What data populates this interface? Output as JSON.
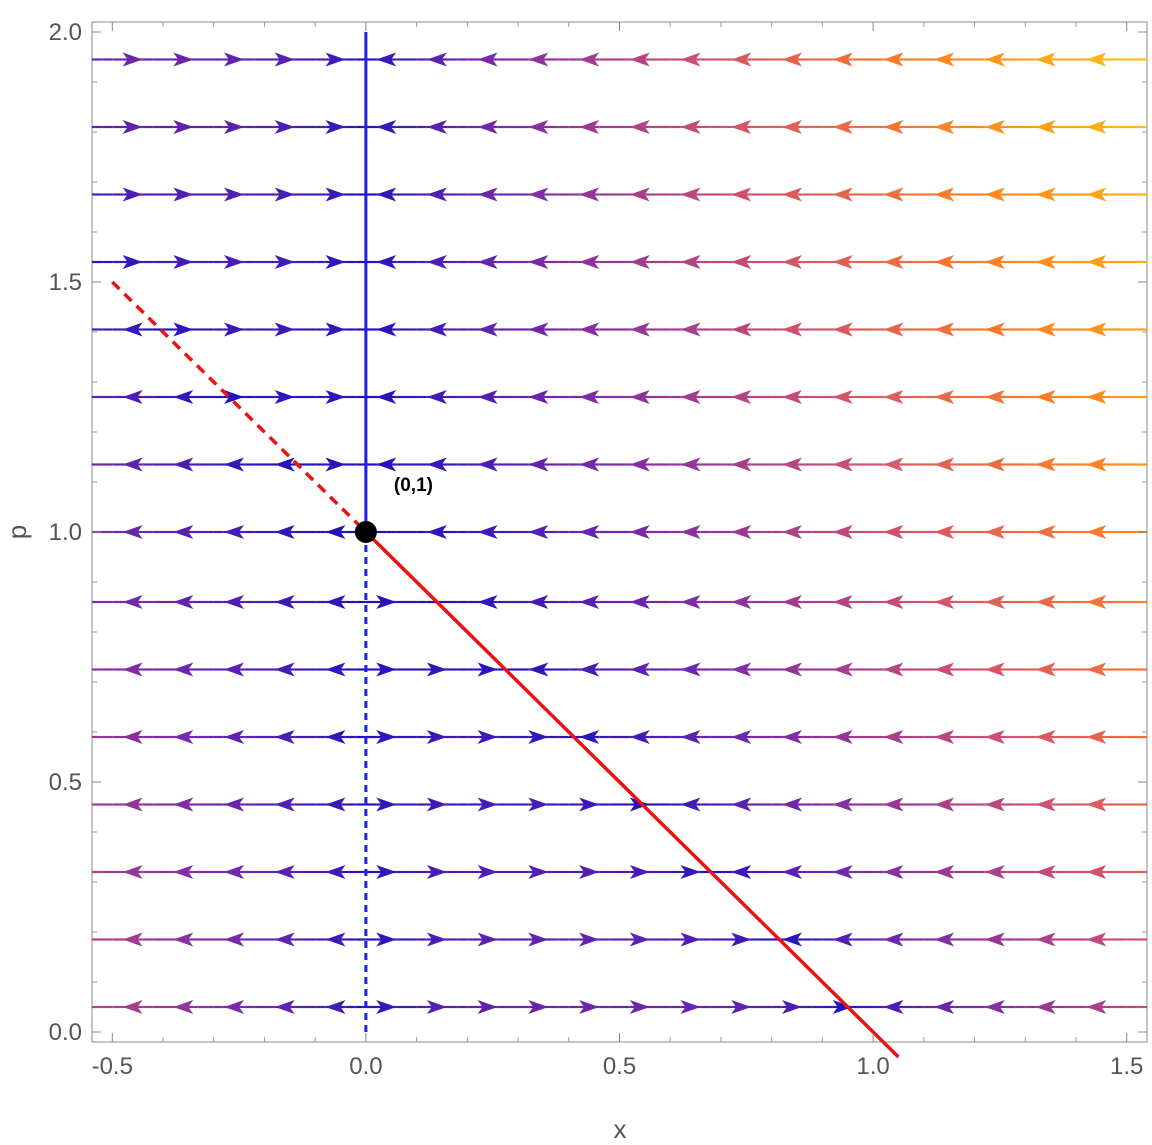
{
  "chart_data": {
    "type": "stream plot",
    "xlabel": "x",
    "ylabel": "p",
    "xlim": [
      -0.54,
      1.54
    ],
    "ylim": [
      -0.02,
      2.02
    ],
    "x_ticks": [
      -0.5,
      0.0,
      0.5,
      1.0,
      1.5
    ],
    "x_tick_labels": [
      "-0.5",
      "0.0",
      "0.5",
      "1.0",
      "1.5"
    ],
    "y_ticks": [
      0.0,
      0.5,
      1.0,
      1.5,
      2.0
    ],
    "y_tick_labels": [
      "0.0",
      "0.5",
      "1.0",
      "1.5",
      "2.0"
    ],
    "streamline_p": [
      0.05,
      0.185,
      0.32,
      0.455,
      0.59,
      0.725,
      0.86,
      1.0,
      1.135,
      1.27,
      1.405,
      1.54,
      1.675,
      1.81,
      1.945
    ],
    "color_scale": [
      "#1a10c0",
      "#7a2aa8",
      "#d05070",
      "#ff8020",
      "#ffc010"
    ],
    "vertical_nullcline": {
      "x": 0,
      "p_solid": [
        1.0,
        2.0
      ],
      "p_dashed": [
        0.0,
        1.0
      ],
      "color": "#1f1fe0"
    },
    "diagonal_line": {
      "points": [
        [
          -0.5,
          1.5
        ],
        [
          1.05,
          -0.05
        ]
      ],
      "dashed_above_p": 1.0,
      "color": "#ee1111"
    },
    "fixed_point": {
      "x": 0,
      "p": 1,
      "label": "(0,1)"
    }
  }
}
